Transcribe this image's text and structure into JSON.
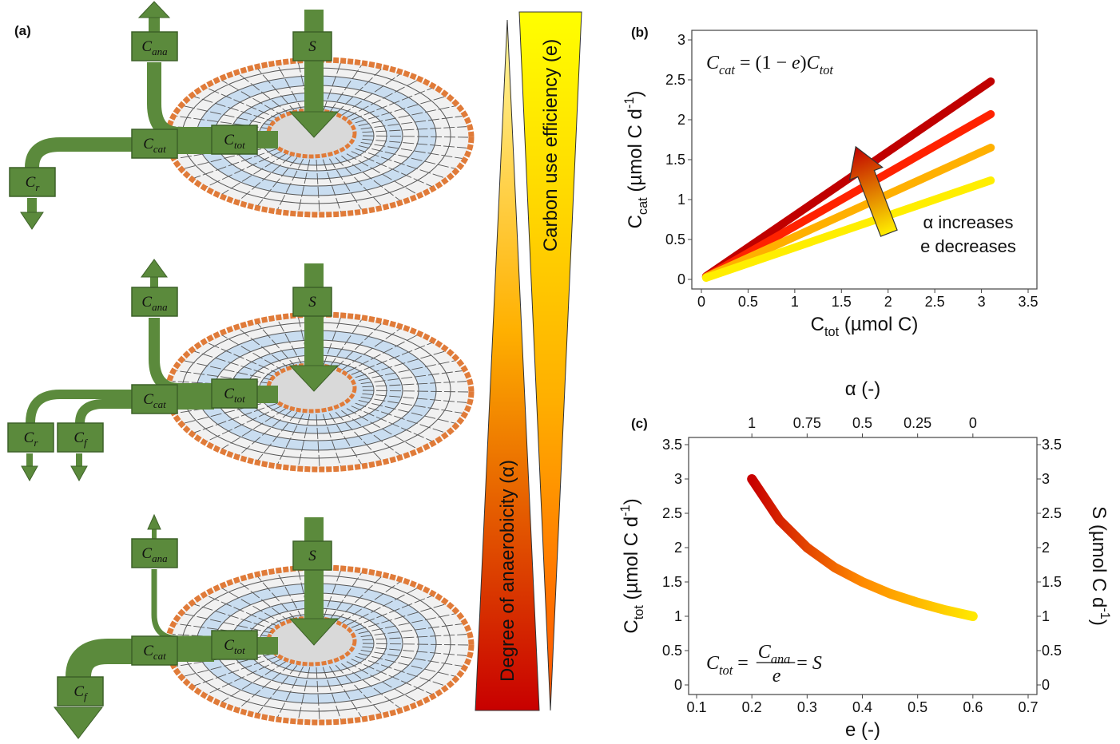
{
  "panel_a": {
    "label": "(a)",
    "diagrams": [
      {
        "boxes": [
          {
            "symbol": "C",
            "subscript": "ana"
          },
          {
            "symbol": "S"
          },
          {
            "symbol": "C",
            "subscript": "cat"
          },
          {
            "symbol": "C",
            "subscript": "tot"
          },
          {
            "symbol": "C",
            "subscript": "r"
          }
        ]
      },
      {
        "boxes": [
          {
            "symbol": "C",
            "subscript": "ana"
          },
          {
            "symbol": "S"
          },
          {
            "symbol": "C",
            "subscript": "cat"
          },
          {
            "symbol": "C",
            "subscript": "tot"
          },
          {
            "symbol": "C",
            "subscript": "r"
          },
          {
            "symbol": "C",
            "subscript": "f"
          }
        ]
      },
      {
        "boxes": [
          {
            "symbol": "C",
            "subscript": "ana"
          },
          {
            "symbol": "S"
          },
          {
            "symbol": "C",
            "subscript": "cat"
          },
          {
            "symbol": "C",
            "subscript": "tot"
          },
          {
            "symbol": "C",
            "subscript": "f"
          }
        ]
      }
    ],
    "gradient_labels": [
      "Degree of anaerobicity (α)",
      "Carbon use efficiency (e)"
    ]
  },
  "chart_data": [
    {
      "type": "line",
      "label": "(b)",
      "equation": [
        {
          "text": "C",
          "style": "it"
        },
        {
          "text": "cat",
          "style": "sub-it"
        },
        {
          "text": " = (1 − ",
          "style": "normal"
        },
        {
          "text": "e",
          "style": "it"
        },
        {
          "text": ")",
          "style": "normal"
        },
        {
          "text": "C",
          "style": "it"
        },
        {
          "text": "tot",
          "style": "sub-it"
        }
      ],
      "xlabel": [
        {
          "text": "C",
          "style": "normal"
        },
        {
          "text": "tot",
          "style": "sub"
        },
        {
          "text": " (µmol C)",
          "style": "normal"
        }
      ],
      "ylabel": [
        {
          "text": "C",
          "style": "normal"
        },
        {
          "text": "cat",
          "style": "sub"
        },
        {
          "text": " (µmol C d",
          "style": "normal"
        },
        {
          "text": "-1",
          "style": "sup"
        },
        {
          "text": ")",
          "style": "normal"
        }
      ],
      "annotation": [
        "α increases",
        "e decreases"
      ],
      "x": [
        0.05,
        3.1
      ],
      "series": [
        {
          "color": "#c00000",
          "values": [
            0.04,
            2.48
          ]
        },
        {
          "color": "#ff2200",
          "values": [
            0.03,
            2.07
          ]
        },
        {
          "color": "#ffb000",
          "values": [
            0.03,
            1.65
          ]
        },
        {
          "color": "#ffee00",
          "values": [
            0.02,
            1.24
          ]
        }
      ],
      "xlim": [
        0,
        3.5
      ],
      "xticks": [
        0,
        0.5,
        1,
        1.5,
        2,
        2.5,
        3,
        3.5
      ],
      "ylim": [
        0,
        3
      ],
      "yticks": [
        0,
        0.5,
        1,
        1.5,
        2,
        2.5,
        3
      ]
    },
    {
      "type": "line",
      "label": "(c)",
      "equation": {
        "lhs": [
          {
            "text": "C",
            "style": "it"
          },
          {
            "text": "tot",
            "style": "sub-it"
          },
          {
            "text": " = ",
            "style": "normal"
          }
        ],
        "numerator": [
          {
            "text": "C",
            "style": "it"
          },
          {
            "text": "ana",
            "style": "sub-it"
          }
        ],
        "denominator": [
          {
            "text": "e",
            "style": "it"
          }
        ],
        "rhs": [
          {
            "text": " = ",
            "style": "normal"
          },
          {
            "text": "S",
            "style": "it"
          }
        ]
      },
      "xlabel": [
        {
          "text": "e (-)",
          "style": "normal"
        }
      ],
      "x2label": [
        {
          "text": "α (-)",
          "style": "normal"
        }
      ],
      "ylabel": [
        {
          "text": "C",
          "style": "normal"
        },
        {
          "text": "tot",
          "style": "sub"
        },
        {
          "text": " (µmol C d",
          "style": "normal"
        },
        {
          "text": "-1",
          "style": "sup"
        },
        {
          "text": ")",
          "style": "normal"
        }
      ],
      "y2label": [
        {
          "text": "S (µmol C d",
          "style": "normal"
        },
        {
          "text": "-1",
          "style": "sup"
        },
        {
          "text": ")",
          "style": "normal"
        }
      ],
      "x": [
        0.2,
        0.25,
        0.3,
        0.35,
        0.4,
        0.45,
        0.5,
        0.55,
        0.6
      ],
      "series": [
        {
          "gradient": [
            "#c80000",
            "#ff8a00",
            "#ffe800"
          ],
          "values": [
            3,
            2.4,
            2,
            1.71,
            1.5,
            1.33,
            1.2,
            1.09,
            1
          ]
        }
      ],
      "xlim": [
        0.1,
        0.7
      ],
      "xticks": [
        0.1,
        0.2,
        0.3,
        0.4,
        0.5,
        0.6,
        0.7
      ],
      "x2lim": [
        1.25,
        -0.25
      ],
      "x2ticks": [
        1,
        0.75,
        0.5,
        0.25,
        0
      ],
      "ylim": [
        0,
        3.5
      ],
      "yticks": [
        0,
        0.5,
        1,
        1.5,
        2,
        2.5,
        3,
        3.5
      ],
      "y2lim": [
        0,
        3.5
      ],
      "y2ticks": [
        0,
        0.5,
        1,
        1.5,
        2,
        2.5,
        3,
        3.5
      ]
    }
  ]
}
